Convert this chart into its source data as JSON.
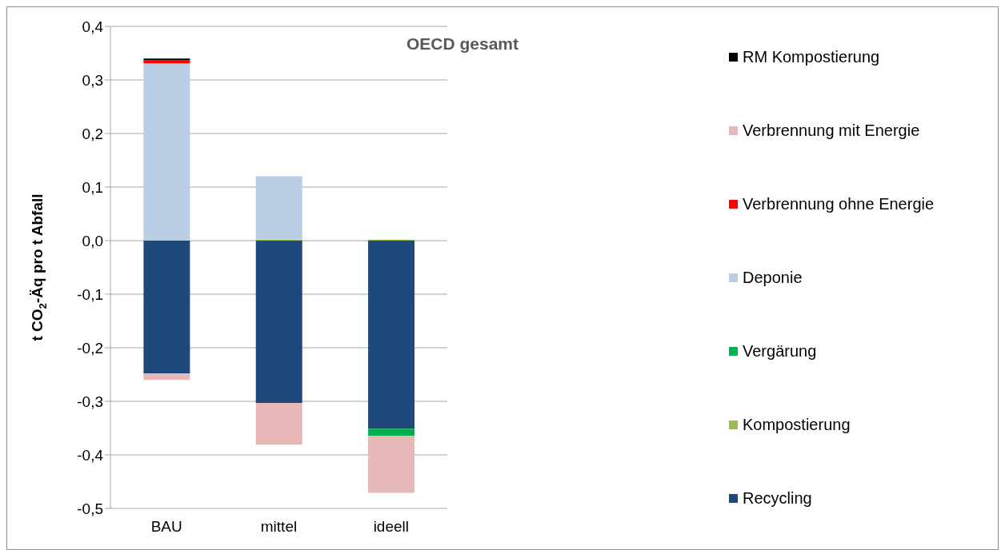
{
  "chart_data": {
    "type": "bar",
    "title": "OECD gesamt",
    "ylabel": "t CO$_{2}$-Äq pro t Abfall",
    "categories": [
      "BAU",
      "mittel",
      "ideell"
    ],
    "stacked": true,
    "series": [
      {
        "name": "Recycling",
        "color": "#1f497d",
        "values": [
          -0.248,
          -0.303,
          -0.351
        ]
      },
      {
        "name": "Kompostierung",
        "color": "#9bbb59",
        "values": [
          0,
          0.002,
          0.002
        ]
      },
      {
        "name": "Vergärung",
        "color": "#00b050",
        "values": [
          0,
          0,
          -0.013
        ]
      },
      {
        "name": "Deponie",
        "color": "#b9cde5",
        "values": [
          0.331,
          0.118,
          0
        ]
      },
      {
        "name": "Verbrennung ohne Energie",
        "color": "#ff0000",
        "values": [
          0.006,
          0,
          0
        ]
      },
      {
        "name": "Verbrennung mit Energie",
        "color": "#e6b9b8",
        "values": [
          -0.012,
          -0.078,
          -0.107
        ]
      },
      {
        "name": "RM Kompostierung",
        "color": "#000000",
        "values": [
          0.003,
          0,
          0
        ]
      }
    ],
    "ylim": [
      -0.5,
      0.4
    ],
    "yticks": [
      {
        "value": -0.5,
        "label": "-0,5"
      },
      {
        "value": -0.4,
        "label": "-0,4"
      },
      {
        "value": -0.3,
        "label": "-0,3"
      },
      {
        "value": -0.2,
        "label": "-0,2"
      },
      {
        "value": -0.1,
        "label": "-0,1"
      },
      {
        "value": 0,
        "label": "0,0"
      },
      {
        "value": 0.1,
        "label": "0,1"
      },
      {
        "value": 0.2,
        "label": "0,2"
      },
      {
        "value": 0.3,
        "label": "0,3"
      },
      {
        "value": 0.4,
        "label": "0,4"
      }
    ],
    "grid": "y",
    "legend": "right"
  }
}
